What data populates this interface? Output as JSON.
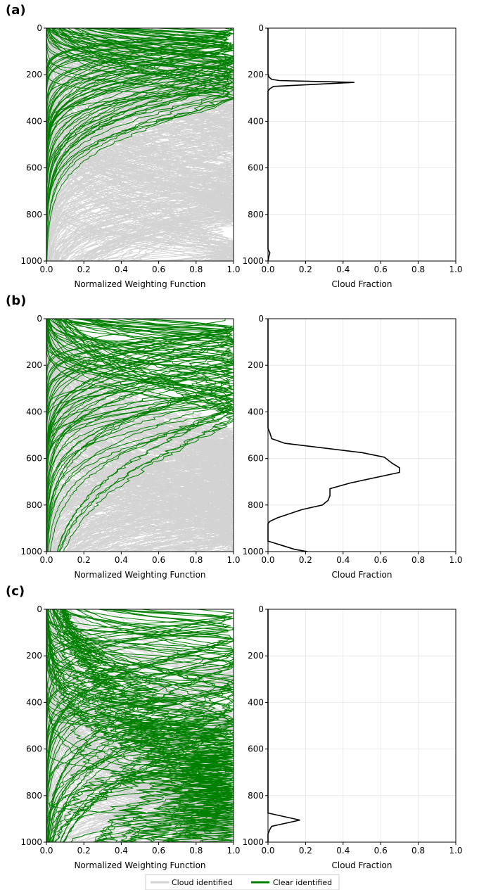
{
  "legend": {
    "placement": "bottom-center",
    "items": [
      {
        "label": "Cloud identified",
        "color": "#d3d3d3"
      },
      {
        "label": "Clear identified",
        "color": "#008000"
      }
    ]
  },
  "chart_data": [
    {
      "type": "line",
      "panel": "(a)",
      "xlabel": "Normalized Weighting Function",
      "ylabel": "",
      "xlim": [
        0,
        1
      ],
      "ylim": [
        1000,
        0
      ],
      "xticks": [
        "0.0",
        "0.2",
        "0.4",
        "0.6",
        "0.8",
        "1.0"
      ],
      "yticks": [
        "0",
        "200",
        "400",
        "600",
        "800",
        "1000"
      ],
      "grid": false,
      "description": "many normalized weighting function profiles (pressure vs weight)",
      "cloud_peaks": [
        200,
        280,
        350,
        420,
        500,
        600,
        680,
        720,
        760,
        800,
        960,
        980
      ],
      "clear_peaks": [
        20,
        40,
        60,
        80,
        100,
        120,
        140,
        160,
        180,
        220,
        260,
        300
      ],
      "series": [
        {
          "name": "Cloud identified",
          "color": "#d3d3d3"
        },
        {
          "name": "Clear identified",
          "color": "#008000"
        }
      ]
    },
    {
      "type": "line",
      "panel": "(a)",
      "xlabel": "Cloud Fraction",
      "ylabel": "",
      "xlim": [
        0,
        1
      ],
      "ylim": [
        1000,
        0
      ],
      "xticks": [
        "0.0",
        "0.2",
        "0.4",
        "0.6",
        "0.8",
        "1.0"
      ],
      "yticks": [
        "0",
        "200",
        "400",
        "600",
        "800",
        "1000"
      ],
      "grid": true,
      "series": [
        {
          "color": "#000000",
          "points": [
            [
              0,
              0
            ],
            [
              0,
              195
            ],
            [
              0.005,
              210
            ],
            [
              0.02,
              220
            ],
            [
              0.06,
              225
            ],
            [
              0.46,
              233
            ],
            [
              0.03,
              250
            ],
            [
              0.01,
              260
            ],
            [
              0,
              270
            ],
            [
              0,
              950
            ],
            [
              0.01,
              965
            ],
            [
              0.005,
              980
            ],
            [
              0,
              1000
            ]
          ]
        }
      ]
    },
    {
      "type": "line",
      "panel": "(b)",
      "xlabel": "Normalized Weighting Function",
      "ylabel": "",
      "xlim": [
        0,
        1
      ],
      "ylim": [
        1000,
        0
      ],
      "xticks": [
        "0.0",
        "0.2",
        "0.4",
        "0.6",
        "0.8",
        "1.0"
      ],
      "yticks": [
        "0",
        "200",
        "400",
        "600",
        "800",
        "1000"
      ],
      "grid": false,
      "cloud_peaks": [
        520,
        560,
        600,
        640,
        680,
        720,
        760,
        800,
        840,
        880,
        920,
        960
      ],
      "clear_peaks": [
        20,
        40,
        70,
        100,
        140,
        180,
        220,
        260,
        300,
        340,
        380,
        420
      ],
      "series": [
        {
          "name": "Cloud identified",
          "color": "#d3d3d3"
        },
        {
          "name": "Clear identified",
          "color": "#008000"
        }
      ]
    },
    {
      "type": "line",
      "panel": "(b)",
      "xlabel": "Cloud Fraction",
      "ylabel": "",
      "xlim": [
        0,
        1
      ],
      "ylim": [
        1000,
        0
      ],
      "xticks": [
        "0.0",
        "0.2",
        "0.4",
        "0.6",
        "0.8",
        "1.0"
      ],
      "yticks": [
        "0",
        "200",
        "400",
        "600",
        "800",
        "1000"
      ],
      "grid": true,
      "series": [
        {
          "color": "#000000",
          "points": [
            [
              0,
              0
            ],
            [
              0,
              470
            ],
            [
              0.01,
              490
            ],
            [
              0.02,
              515
            ],
            [
              0.09,
              535
            ],
            [
              0.5,
              575
            ],
            [
              0.62,
              595
            ],
            [
              0.66,
              620
            ],
            [
              0.7,
              640
            ],
            [
              0.7,
              660
            ],
            [
              0.44,
              705
            ],
            [
              0.33,
              730
            ],
            [
              0.33,
              760
            ],
            [
              0.32,
              780
            ],
            [
              0.29,
              800
            ],
            [
              0.18,
              820
            ],
            [
              0.05,
              855
            ],
            [
              0.01,
              870
            ],
            [
              0,
              880
            ],
            [
              0,
              955
            ],
            [
              0.08,
              975
            ],
            [
              0.14,
              990
            ],
            [
              0.21,
              1000
            ]
          ]
        }
      ]
    },
    {
      "type": "line",
      "panel": "(c)",
      "xlabel": "Normalized Weighting Function",
      "ylabel": "",
      "xlim": [
        0,
        1
      ],
      "ylim": [
        1000,
        0
      ],
      "xticks": [
        "0.0",
        "0.2",
        "0.4",
        "0.6",
        "0.8",
        "1.0"
      ],
      "yticks": [
        "0",
        "200",
        "400",
        "600",
        "800",
        "1000"
      ],
      "grid": false,
      "cloud_peaks": [
        300,
        500,
        700,
        820,
        880,
        920,
        960,
        990
      ],
      "clear_peaks": [
        30,
        80,
        130,
        180,
        240,
        300,
        360,
        420,
        480,
        540,
        600,
        660,
        720,
        780,
        840,
        880
      ],
      "series": [
        {
          "name": "Cloud identified",
          "color": "#d3d3d3"
        },
        {
          "name": "Clear identified",
          "color": "#008000"
        }
      ]
    },
    {
      "type": "line",
      "panel": "(c)",
      "xlabel": "Cloud Fraction",
      "ylabel": "",
      "xlim": [
        0,
        1
      ],
      "ylim": [
        1000,
        0
      ],
      "xticks": [
        "0.0",
        "0.2",
        "0.4",
        "0.6",
        "0.8",
        "1.0"
      ],
      "yticks": [
        "0",
        "200",
        "400",
        "600",
        "800",
        "1000"
      ],
      "grid": true,
      "series": [
        {
          "color": "#000000",
          "points": [
            [
              0,
              0
            ],
            [
              0,
              875
            ],
            [
              0.17,
              905
            ],
            [
              0.02,
              932
            ],
            [
              0.01,
              945
            ],
            [
              0,
              965
            ],
            [
              0,
              1000
            ]
          ]
        }
      ]
    }
  ]
}
